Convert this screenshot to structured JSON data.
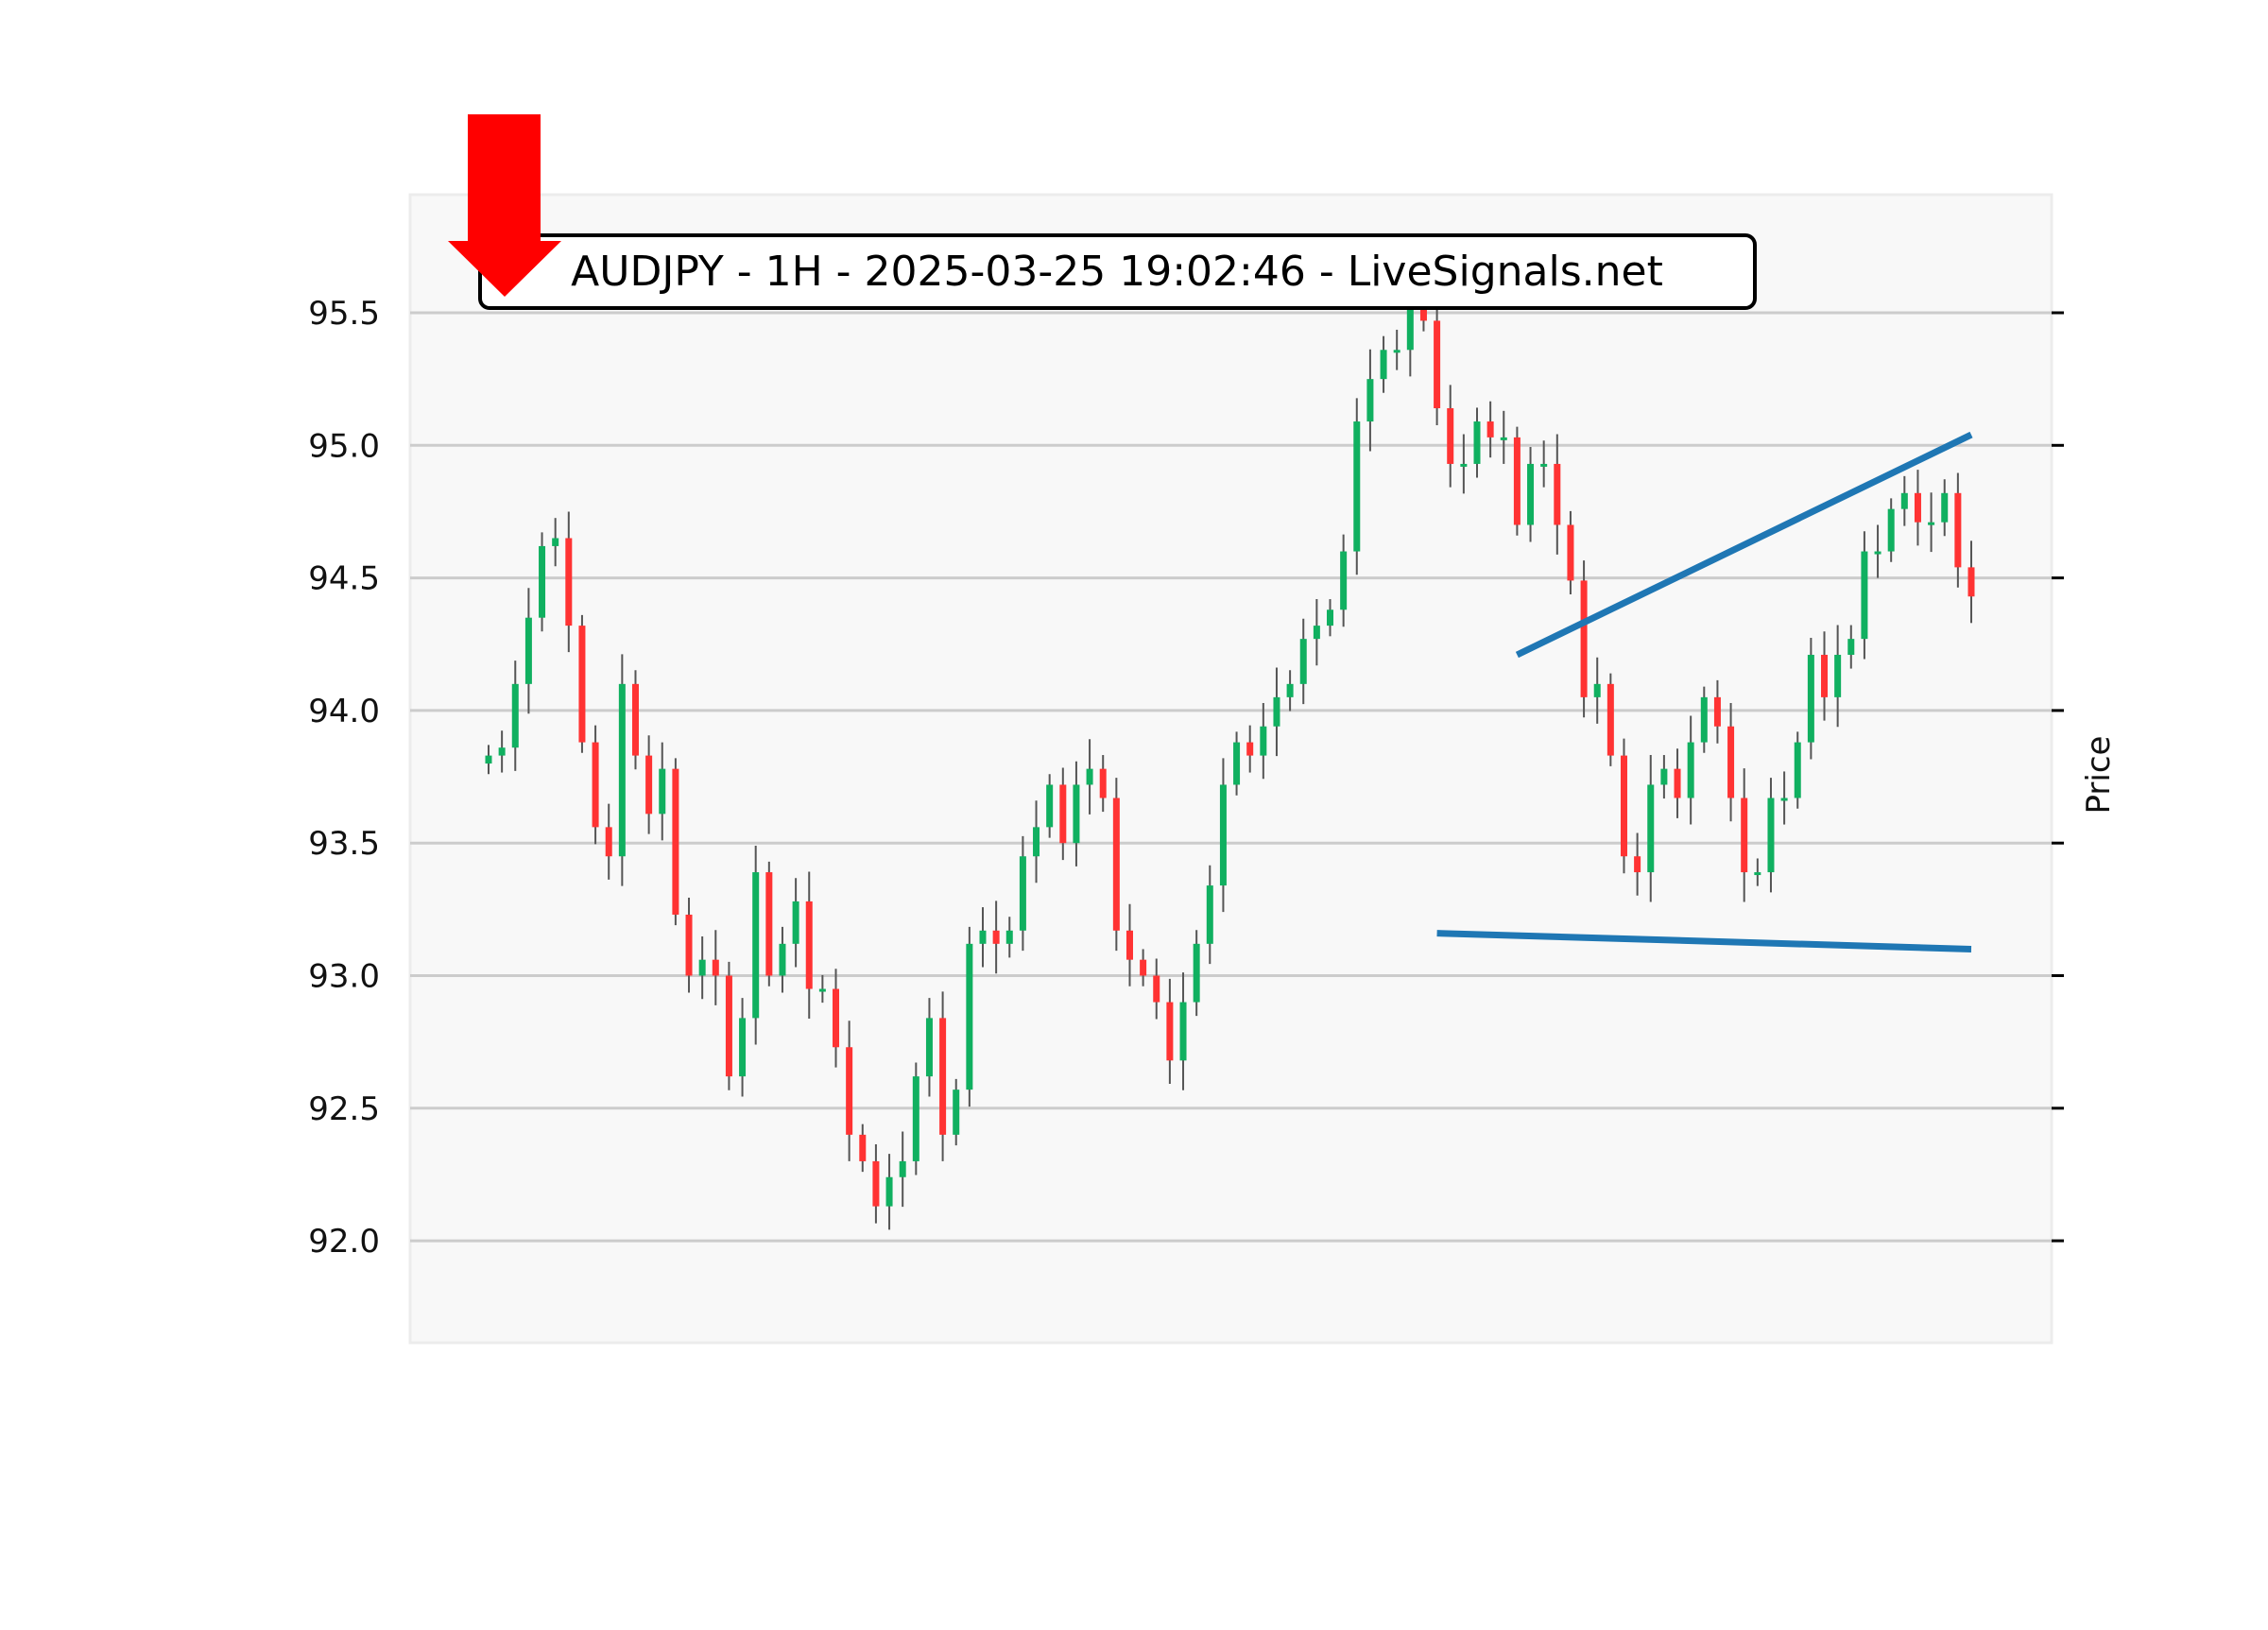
{
  "chart_data": {
    "type": "candlestick",
    "title": "AUDJPY - 1H - 2025-03-25 19:02:46 - LiveSignals.net",
    "ylabel": "Price",
    "xlabel": "",
    "ylim": [
      91.68,
      95.82
    ],
    "yticks": [
      "92.0",
      "92.5",
      "93.0",
      "93.5",
      "94.0",
      "94.5",
      "95.0",
      "95.5"
    ],
    "grid": true,
    "colors": {
      "up": "#10b060",
      "down": "#ff3333",
      "wick": "#555555",
      "trendline": "#1f77b4",
      "arrow": "#ff0000",
      "background": "#f8f8f8"
    },
    "closes": [
      93.83,
      93.86,
      94.1,
      94.35,
      94.62,
      94.65,
      94.32,
      93.88,
      93.56,
      93.45,
      94.1,
      93.83,
      93.61,
      93.78,
      93.23,
      93.0,
      93.06,
      93.0,
      92.62,
      92.84,
      93.39,
      93.0,
      93.12,
      93.28,
      92.95,
      92.95,
      92.73,
      92.4,
      92.3,
      92.13,
      92.24,
      92.3,
      92.62,
      92.84,
      92.4,
      92.57,
      93.12,
      93.17,
      93.12,
      93.17,
      93.45,
      93.56,
      93.72,
      93.5,
      93.72,
      93.78,
      93.67,
      93.17,
      93.06,
      93.0,
      92.9,
      92.68,
      92.9,
      93.12,
      93.34,
      93.72,
      93.88,
      93.83,
      93.94,
      94.05,
      94.1,
      94.27,
      94.32,
      94.38,
      94.6,
      95.09,
      95.25,
      95.36,
      95.36,
      95.53,
      95.47,
      95.14,
      94.93,
      94.93,
      95.09,
      95.03,
      95.03,
      94.7,
      94.93,
      94.93,
      94.7,
      94.49,
      94.05,
      94.1,
      93.83,
      93.45,
      93.39,
      93.72,
      93.78,
      93.67,
      93.88,
      94.05,
      93.94,
      93.67,
      93.39,
      93.39,
      93.67,
      93.67,
      93.88,
      94.21,
      94.05,
      94.21,
      94.27,
      94.6,
      94.6,
      94.76,
      94.82,
      94.71,
      94.71,
      94.82,
      94.54,
      94.43
    ],
    "trendlines": [
      {
        "from": [
          77,
          94.21
        ],
        "to": [
          111,
          95.04
        ]
      },
      {
        "from": [
          71,
          93.16
        ],
        "to": [
          111,
          93.1
        ]
      }
    ],
    "signal": "sell-arrow"
  }
}
